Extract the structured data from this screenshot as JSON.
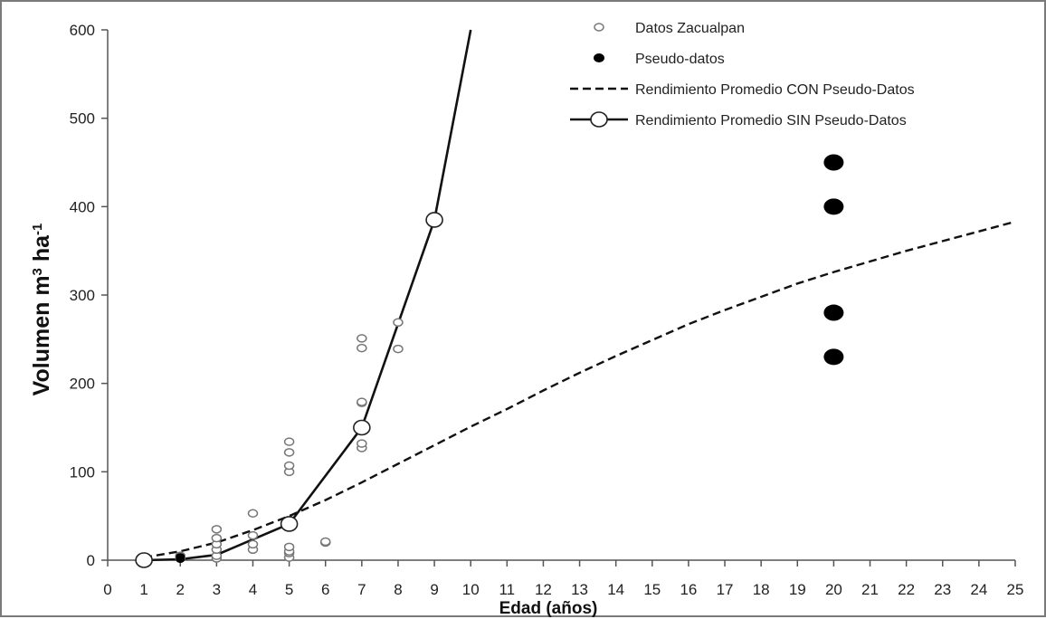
{
  "chart_data": {
    "type": "scatter",
    "title": "",
    "xlabel": "Edad (años)",
    "ylabel": {
      "main": "Volumen m",
      "sup1": "3",
      "mid": " ha",
      "sup2": "-1"
    },
    "xlim": [
      0,
      25
    ],
    "ylim": [
      0,
      600
    ],
    "x_ticks": [
      0,
      1,
      2,
      3,
      4,
      5,
      6,
      7,
      8,
      9,
      10,
      11,
      12,
      13,
      14,
      15,
      16,
      17,
      18,
      19,
      20,
      21,
      22,
      23,
      24,
      25
    ],
    "y_ticks": [
      0,
      100,
      200,
      300,
      400,
      500,
      600
    ],
    "grid": false,
    "legend_position": "top-right",
    "series": [
      {
        "name": "Datos Zacualpan",
        "kind": "open-points",
        "points": [
          [
            1,
            0
          ],
          [
            1,
            1
          ],
          [
            2,
            2
          ],
          [
            2,
            5
          ],
          [
            3,
            2
          ],
          [
            3,
            5
          ],
          [
            3,
            12
          ],
          [
            3,
            18
          ],
          [
            3,
            25
          ],
          [
            3,
            35
          ],
          [
            4,
            12
          ],
          [
            4,
            18
          ],
          [
            4,
            28
          ],
          [
            4,
            53
          ],
          [
            5,
            3
          ],
          [
            5,
            8
          ],
          [
            5,
            10
          ],
          [
            5,
            15
          ],
          [
            5,
            100
          ],
          [
            5,
            107
          ],
          [
            5,
            122
          ],
          [
            5,
            134
          ],
          [
            6,
            20
          ],
          [
            6,
            21
          ],
          [
            7,
            127
          ],
          [
            7,
            132
          ],
          [
            7,
            178
          ],
          [
            7,
            179
          ],
          [
            7,
            240
          ],
          [
            7,
            251
          ],
          [
            8,
            239
          ],
          [
            8,
            269
          ]
        ]
      },
      {
        "name": "Pseudo-datos",
        "kind": "filled-points",
        "points": [
          [
            2,
            1
          ],
          [
            2,
            4
          ],
          [
            20,
            230
          ],
          [
            20,
            280
          ],
          [
            20,
            400
          ],
          [
            20,
            450
          ]
        ]
      },
      {
        "name": "Rendimiento Promedio CON Pseudo-Datos",
        "kind": "dashed-line",
        "points": [
          [
            1,
            3
          ],
          [
            2,
            10
          ],
          [
            3,
            20
          ],
          [
            4,
            34
          ],
          [
            5,
            50
          ],
          [
            6,
            68
          ],
          [
            7,
            88
          ],
          [
            8,
            109
          ],
          [
            9,
            130
          ],
          [
            10,
            151
          ],
          [
            11,
            171
          ],
          [
            12,
            192
          ],
          [
            13,
            212
          ],
          [
            14,
            231
          ],
          [
            15,
            249
          ],
          [
            16,
            267
          ],
          [
            17,
            283
          ],
          [
            18,
            298
          ],
          [
            19,
            313
          ],
          [
            20,
            326
          ],
          [
            21,
            338
          ],
          [
            22,
            350
          ],
          [
            23,
            361
          ],
          [
            24,
            372
          ],
          [
            25,
            383
          ]
        ]
      },
      {
        "name": "Rendimiento Promedio SIN Pseudo-Datos",
        "kind": "line-markers",
        "points": [
          [
            1,
            0
          ],
          [
            2,
            1
          ],
          [
            3,
            6
          ],
          [
            5,
            41
          ],
          [
            7,
            150
          ],
          [
            9,
            385
          ],
          [
            10,
            600
          ]
        ],
        "markers": [
          [
            1,
            0
          ],
          [
            5,
            41
          ],
          [
            7,
            150
          ],
          [
            9,
            385
          ]
        ]
      }
    ]
  }
}
